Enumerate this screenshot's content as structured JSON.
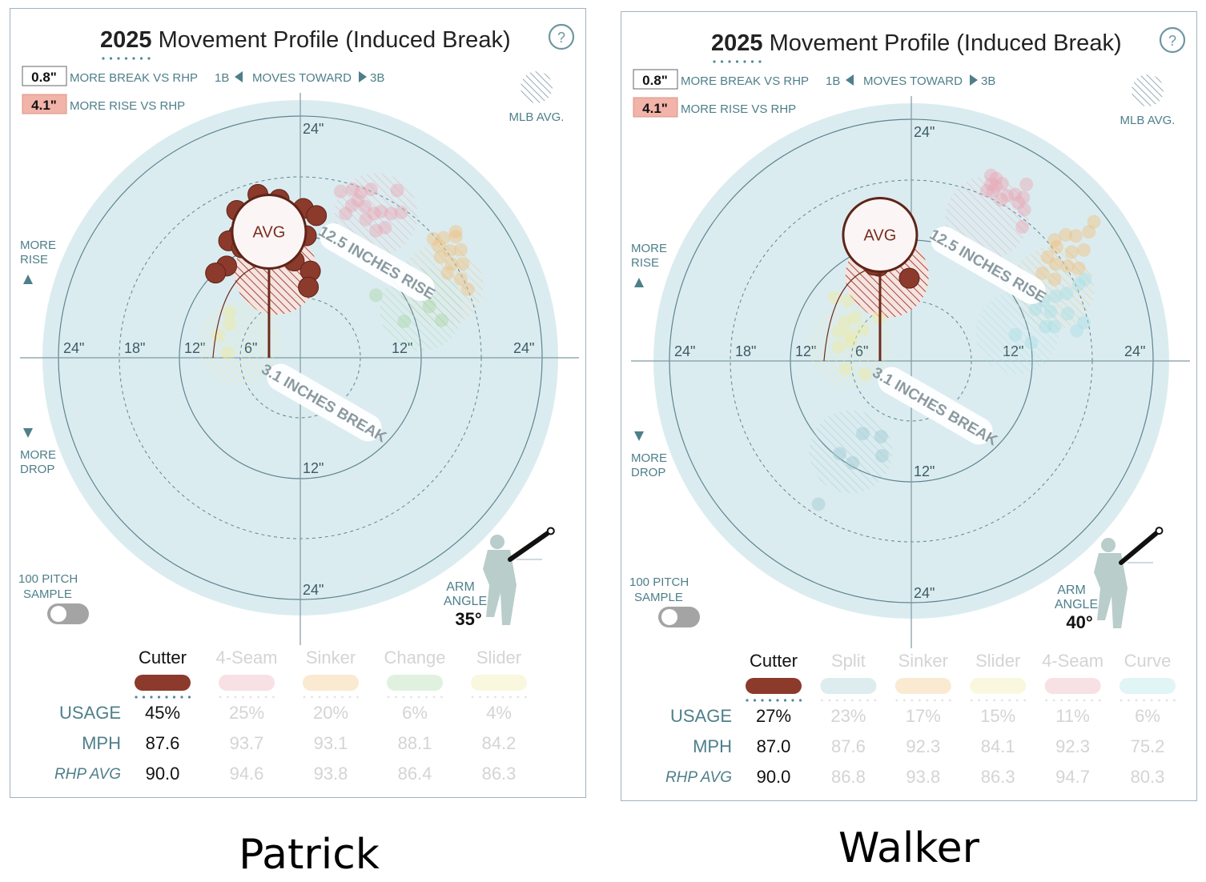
{
  "panels": [
    {
      "id": "left",
      "pitcher_caption": "Patrick",
      "title_year": "2025",
      "title_rest": "Movement Profile (Induced Break)",
      "help_glyph": "?",
      "legend": {
        "break_value": "0.8\"",
        "break_label": "MORE BREAK VS RHP",
        "rise_value": "4.1\"",
        "rise_label": "MORE RISE VS RHP",
        "moves_left": "1B",
        "moves_label": "MOVES TOWARD",
        "moves_right": "3B",
        "mlb_avg": "MLB AVG."
      },
      "side_labels": {
        "rise_1": "MORE",
        "rise_2": "RISE",
        "drop_1": "MORE",
        "drop_2": "DROP"
      },
      "sample_1": "100 PITCH",
      "sample_2": "SAMPLE",
      "arm_label_1": "ARM",
      "arm_label_2": "ANGLE",
      "arm_angle": "35°",
      "arm_angle_deg": 35,
      "avg_label": "AVG",
      "rise_annotation": "12.5 INCHES RISE",
      "break_annotation": "3.1 INCHES BREAK",
      "axis_ticks_left": [
        "24\"",
        "18\"",
        "12\"",
        "6\""
      ],
      "axis_ticks_right": [
        "12\"",
        "24\""
      ],
      "axis_ticks_top": "24\"",
      "axis_ticks_bottom": [
        "12\"",
        "24\""
      ],
      "row_labels": {
        "usage": "USAGE",
        "mph": "MPH",
        "rhp": "RHP AVG"
      },
      "colors": {
        "primary": "#8b3a2b",
        "others": [
          "#f2cdd3",
          "#f9dfc4",
          "#d6ecd2",
          "#f6f3c8"
        ]
      },
      "chart_data": {
        "type": "scatter",
        "title": "2025 Movement Profile (Induced Break)",
        "xlabel": "",
        "ylabel": "",
        "xlim": [
          -24,
          24
        ],
        "ylim": [
          -24,
          24
        ],
        "avg": {
          "x": -3.1,
          "y": 12.5
        },
        "pitches": [
          {
            "name": "Cutter",
            "usage": "45%",
            "mph": "87.6",
            "rhp_avg": "90.0",
            "color": "#8b3a2b",
            "mlb_avg": {
              "x": -2.4,
              "y": 8.4
            },
            "points": [
              [
                -4.2,
                16.2
              ],
              [
                -2.1,
                15.7
              ],
              [
                -6.3,
                14.6
              ],
              [
                0.3,
                14.8
              ],
              [
                1.6,
                14.1
              ],
              [
                -6.1,
                12.3
              ],
              [
                -7.1,
                11.6
              ],
              [
                -5.8,
                10.9
              ],
              [
                -7.3,
                9.1
              ],
              [
                -1.4,
                11.7
              ],
              [
                -0.6,
                9.6
              ],
              [
                1.0,
                8.6
              ],
              [
                -8.4,
                8.4
              ],
              [
                0.8,
                7.0
              ],
              [
                -3.4,
                12.9
              ],
              [
                -2.4,
                13.3
              ],
              [
                -1.0,
                12.3
              ],
              [
                -3.0,
                10.0
              ],
              [
                -4.9,
                13.5
              ],
              [
                0.6,
                12.1
              ]
            ]
          },
          {
            "name": "4-Seam",
            "usage": "25%",
            "mph": "93.7",
            "rhp_avg": "94.6",
            "color": "#e8a9b5",
            "mlb_avg": {
              "x": 7.5,
              "y": 14.2
            },
            "points": [
              [
                4.0,
                16.5
              ],
              [
                5.2,
                16.7
              ],
              [
                6.0,
                16.4
              ],
              [
                7.0,
                16.7
              ],
              [
                9.6,
                16.6
              ],
              [
                5.1,
                15.1
              ],
              [
                6.4,
                15.0
              ],
              [
                7.3,
                14.3
              ],
              [
                8.0,
                14.5
              ],
              [
                9.0,
                14.3
              ],
              [
                4.5,
                14.3
              ],
              [
                6.5,
                13.7
              ],
              [
                7.5,
                12.6
              ],
              [
                8.4,
                12.9
              ],
              [
                10.0,
                14.4
              ],
              [
                5.7,
                15.6
              ]
            ]
          },
          {
            "name": "Sinker",
            "usage": "20%",
            "mph": "93.1",
            "rhp_avg": "93.8",
            "color": "#f0c27e",
            "mlb_avg": {
              "x": 14.0,
              "y": 7.2
            },
            "points": [
              [
                14.2,
                11.9
              ],
              [
                15.4,
                12.5
              ],
              [
                13.7,
                11.1
              ],
              [
                14.8,
                10.6
              ],
              [
                15.9,
                10.7
              ],
              [
                13.9,
                10.0
              ],
              [
                15.0,
                9.3
              ],
              [
                16.1,
                9.3
              ],
              [
                14.6,
                8.4
              ],
              [
                15.9,
                7.8
              ],
              [
                13.2,
                11.8
              ],
              [
                16.6,
                6.8
              ],
              [
                15.4,
                12.0
              ]
            ]
          },
          {
            "name": "Change",
            "usage": "6%",
            "mph": "88.1",
            "rhp_avg": "86.4",
            "color": "#a9d6a3",
            "mlb_avg": {
              "x": 12.0,
              "y": 4.8
            },
            "points": [
              [
                7.5,
                6.2
              ],
              [
                10.3,
                3.6
              ],
              [
                14.0,
                3.7
              ],
              [
                12.8,
                5.1
              ]
            ]
          },
          {
            "name": "Slider",
            "usage": "4%",
            "mph": "84.2",
            "rhp_avg": "86.3",
            "color": "#eeeaa0",
            "mlb_avg": {
              "x": -6.0,
              "y": 1.5
            },
            "points": [
              [
                -7.0,
                4.5
              ],
              [
                -8.1,
                2.2
              ],
              [
                -7.2,
                0.5
              ],
              [
                -7.0,
                3.3
              ]
            ]
          }
        ]
      }
    },
    {
      "id": "right",
      "pitcher_caption": "Walker",
      "title_year": "2025",
      "title_rest": "Movement Profile (Induced Break)",
      "help_glyph": "?",
      "legend": {
        "break_value": "0.8\"",
        "break_label": "MORE BREAK VS RHP",
        "rise_value": "4.1\"",
        "rise_label": "MORE RISE VS RHP",
        "moves_left": "1B",
        "moves_label": "MOVES TOWARD",
        "moves_right": "3B",
        "mlb_avg": "MLB AVG."
      },
      "side_labels": {
        "rise_1": "MORE",
        "rise_2": "RISE",
        "drop_1": "MORE",
        "drop_2": "DROP"
      },
      "sample_1": "100 PITCH",
      "sample_2": "SAMPLE",
      "arm_label_1": "ARM",
      "arm_label_2": "ANGLE",
      "arm_angle": "40°",
      "arm_angle_deg": 40,
      "avg_label": "AVG",
      "rise_annotation": "12.5 INCHES RISE",
      "break_annotation": "3.1 INCHES BREAK",
      "axis_ticks_left": [
        "24\"",
        "18\"",
        "12\"",
        "6\""
      ],
      "axis_ticks_right": [
        "12\"",
        "24\""
      ],
      "axis_ticks_top": "24\"",
      "axis_ticks_bottom": [
        "12\"",
        "24\""
      ],
      "row_labels": {
        "usage": "USAGE",
        "mph": "MPH",
        "rhp": "RHP AVG"
      },
      "colors": {
        "primary": "#8b3a2b",
        "others": [
          "#cfe6ea",
          "#f9dfc4",
          "#f6f3c8",
          "#f2cdd3",
          "#c8ecef"
        ]
      },
      "chart_data": {
        "type": "scatter",
        "title": "2025 Movement Profile (Induced Break)",
        "xlabel": "",
        "ylabel": "",
        "xlim": [
          -24,
          24
        ],
        "ylim": [
          -24,
          24
        ],
        "avg": {
          "x": -3.1,
          "y": 12.5
        },
        "pitches": [
          {
            "name": "Cutter",
            "usage": "27%",
            "mph": "87.0",
            "rhp_avg": "90.0",
            "color": "#8b3a2b",
            "mlb_avg": {
              "x": -2.4,
              "y": 8.4
            },
            "points": [
              [
                -4.0,
                14.8
              ],
              [
                -1.6,
                14.4
              ],
              [
                -5.3,
                13.9
              ],
              [
                -4.2,
                13.1
              ],
              [
                -4.8,
                12.5
              ],
              [
                -3.5,
                12.2
              ],
              [
                -2.9,
                11.4
              ],
              [
                -2.6,
                10.0
              ],
              [
                -3.2,
                9.4
              ],
              [
                -4.7,
                10.3
              ],
              [
                -1.6,
                10.2
              ],
              [
                -0.2,
                8.2
              ],
              [
                -4.1,
                11.1
              ],
              [
                -3.7,
                9.5
              ]
            ]
          },
          {
            "name": "Split",
            "usage": "23%",
            "mph": "87.6",
            "rhp_avg": "86.8",
            "color": "#9fc9d2",
            "mlb_avg": {
              "x": -6.0,
              "y": -9.0
            },
            "points": [
              [
                -4.8,
                -7.2
              ],
              [
                -7.1,
                -9.2
              ],
              [
                -5.8,
                -10.1
              ],
              [
                -9.2,
                -14.2
              ],
              [
                -2.9,
                -9.4
              ],
              [
                -3.0,
                -7.5
              ]
            ]
          },
          {
            "name": "Sinker",
            "usage": "17%",
            "mph": "92.3",
            "rhp_avg": "93.8",
            "color": "#f0c27e",
            "mlb_avg": {
              "x": 14.0,
              "y": 7.2
            },
            "points": [
              [
                14.2,
                12.0
              ],
              [
                15.3,
                12.5
              ],
              [
                16.3,
                12.4
              ],
              [
                17.6,
                12.8
              ],
              [
                14.4,
                11.3
              ],
              [
                15.9,
                10.8
              ],
              [
                17.1,
                11.0
              ],
              [
                13.5,
                10.3
              ],
              [
                14.3,
                9.6
              ],
              [
                15.5,
                9.4
              ],
              [
                13.0,
                8.7
              ],
              [
                14.2,
                8.1
              ],
              [
                16.6,
                9.2
              ],
              [
                18.1,
                13.8
              ]
            ]
          },
          {
            "name": "Slider",
            "usage": "15%",
            "mph": "84.1",
            "rhp_avg": "86.3",
            "color": "#eeeaa0",
            "mlb_avg": {
              "x": -6.0,
              "y": 1.5
            },
            "points": [
              [
                -7.6,
                6.3
              ],
              [
                -6.3,
                6.0
              ],
              [
                -5.6,
                4.3
              ],
              [
                -6.6,
                3.8
              ],
              [
                -7.2,
                2.9
              ],
              [
                -6.0,
                2.6
              ],
              [
                -4.8,
                3.1
              ],
              [
                -6.0,
                1.9
              ],
              [
                -7.2,
                1.4
              ],
              [
                -6.5,
                -0.8
              ],
              [
                -4.6,
                -1.3
              ],
              [
                -3.2,
                4.3
              ]
            ]
          },
          {
            "name": "4-Seam",
            "usage": "11%",
            "mph": "92.3",
            "rhp_avg": "94.7",
            "color": "#e8a9b5",
            "mlb_avg": {
              "x": 7.5,
              "y": 14.2
            },
            "points": [
              [
                7.9,
                18.4
              ],
              [
                8.4,
                18.1
              ],
              [
                7.9,
                17.5
              ],
              [
                8.4,
                17.3
              ],
              [
                9.0,
                17.6
              ],
              [
                7.5,
                16.9
              ],
              [
                8.1,
                16.8
              ],
              [
                10.3,
                16.5
              ],
              [
                8.9,
                16.0
              ],
              [
                10.6,
                15.7
              ],
              [
                11.1,
                16.2
              ],
              [
                11.4,
                17.5
              ],
              [
                11.2,
                15.0
              ],
              [
                11.0,
                13.3
              ],
              [
                9.5,
                16.4
              ]
            ]
          },
          {
            "name": "Curve",
            "usage": "6%",
            "mph": "75.2",
            "rhp_avg": "80.3",
            "color": "#a8e0e5",
            "mlb_avg": {
              "x": 10.5,
              "y": 2.8
            },
            "points": [
              [
                10.3,
                2.6
              ],
              [
                13.3,
                3.4
              ],
              [
                14.2,
                3.4
              ],
              [
                12.3,
                5.1
              ],
              [
                13.1,
                6.0
              ],
              [
                14.3,
                6.4
              ],
              [
                15.4,
                6.7
              ],
              [
                16.6,
                7.6
              ],
              [
                17.2,
                8.1
              ],
              [
                15.5,
                4.7
              ],
              [
                16.4,
                3.0
              ],
              [
                17.1,
                3.8
              ],
              [
                11.9,
                1.8
              ],
              [
                13.8,
                4.9
              ]
            ]
          }
        ]
      }
    }
  ]
}
